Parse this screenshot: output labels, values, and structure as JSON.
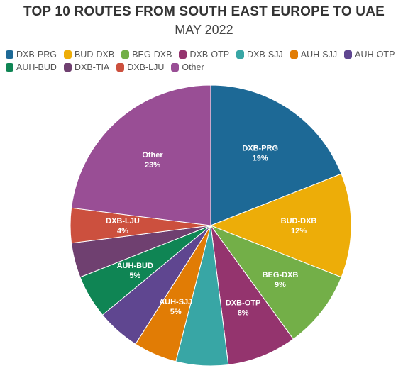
{
  "title": "TOP 10 ROUTES FROM SOUTH EAST EUROPE TO UAE",
  "subtitle": "MAY 2022",
  "chart_data": {
    "type": "pie",
    "title": "TOP 10 ROUTES FROM SOUTH EAST EUROPE TO UAE",
    "subtitle": "MAY 2022",
    "legend_placement": "top",
    "slices": [
      {
        "label": "DXB-PRG",
        "value": 19,
        "display": "19%",
        "color": "#1d6996",
        "show_label": true
      },
      {
        "label": "BUD-DXB",
        "value": 12,
        "display": "12%",
        "color": "#edad08",
        "show_label": true
      },
      {
        "label": "BEG-DXB",
        "value": 9,
        "display": "9%",
        "color": "#73af48",
        "show_label": true
      },
      {
        "label": "DXB-OTP",
        "value": 8,
        "display": "8%",
        "color": "#94346e",
        "show_label": true
      },
      {
        "label": "DXB-SJJ",
        "value": 6,
        "display": "6%",
        "color": "#38a6a5",
        "show_label": false
      },
      {
        "label": "AUH-SJJ",
        "value": 5,
        "display": "5%",
        "color": "#e17c05",
        "show_label": true
      },
      {
        "label": "AUH-OTP",
        "value": 5,
        "display": "5%",
        "color": "#5f4690",
        "show_label": false
      },
      {
        "label": "AUH-BUD",
        "value": 5,
        "display": "5%",
        "color": "#0f8554",
        "show_label": true
      },
      {
        "label": "DXB-TIA",
        "value": 4,
        "display": "4%",
        "color": "#6f4070",
        "show_label": false
      },
      {
        "label": "DXB-LJU",
        "value": 4,
        "display": "4%",
        "color": "#cc503e",
        "show_label": true
      },
      {
        "label": "Other",
        "value": 23,
        "display": "23%",
        "color": "#994e95",
        "show_label": true
      }
    ]
  }
}
